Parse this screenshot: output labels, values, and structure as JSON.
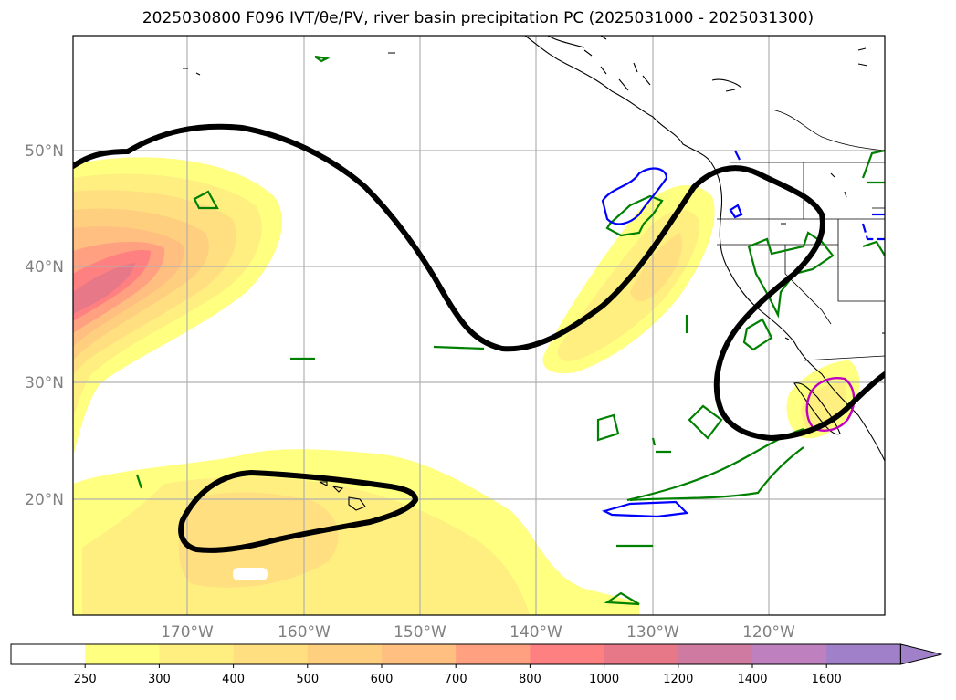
{
  "title": "2025030800 F096 IVT/θe/PV, river basin precipitation PC (2025031000 - 2025031300)",
  "map": {
    "lon_range": [
      -180,
      -110
    ],
    "lat_range": [
      10,
      60
    ],
    "grid": true,
    "lat_labels": [
      "50°N",
      "40°N",
      "30°N",
      "20°N"
    ],
    "lon_labels": [
      "170°W",
      "160°W",
      "150°W",
      "140°W",
      "130°W",
      "120°W"
    ]
  },
  "colorbar": {
    "labels": [
      "250",
      "300",
      "400",
      "500",
      "600",
      "700",
      "800",
      "1000",
      "1200",
      "1400",
      "1600"
    ],
    "colors": [
      "#ffffff",
      "#ffff80",
      "#ffef80",
      "#ffdf80",
      "#ffcf80",
      "#ffbf80",
      "#ffa080",
      "#ff8080",
      "#e77888",
      "#cf7aa0",
      "#bf80bf",
      "#a080c8"
    ],
    "extend": "max"
  },
  "colors": {
    "pv_contour": "#000000",
    "theta_green": "#008000",
    "theta_blue": "#0000ff",
    "precip_magenta": "#c000c0",
    "coast": "#000000"
  }
}
